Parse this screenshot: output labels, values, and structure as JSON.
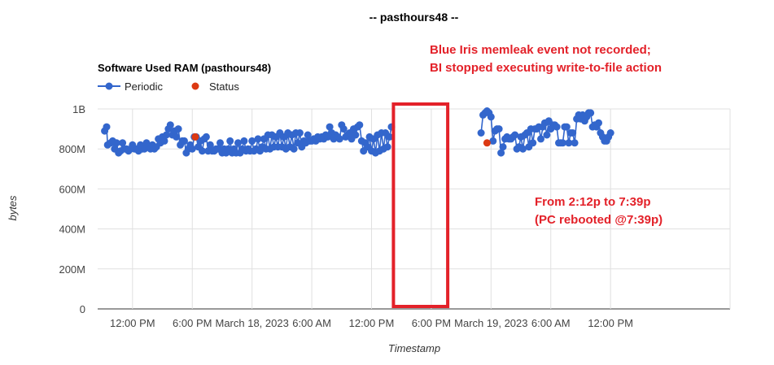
{
  "page_title": "-- pasthours48 --",
  "annotation_top": {
    "line1": "Blue Iris memleak event not recorded;",
    "line2": "BI stopped executing write-to-file action"
  },
  "annotation_bottom": {
    "line1": "From 2:12p to 7:39p",
    "line2": "(PC rebooted @7:39p)"
  },
  "colors": {
    "periodic": "#3366cc",
    "status": "#dc3912",
    "annotation": "#e32129",
    "grid": "#e0e0e0",
    "axis": "#333333"
  },
  "chart_data": {
    "type": "scatter",
    "title": "Software Used RAM (pasthours48)",
    "xlabel": "Timestamp",
    "ylabel": "bytes",
    "x_unit": "hours since March 17, 2023 12:00 AM",
    "xlim": [
      8.5,
      72
    ],
    "ylim": [
      0,
      1000000000
    ],
    "yticks": [
      {
        "value": 0,
        "label": "0"
      },
      {
        "value": 200000000,
        "label": "200M"
      },
      {
        "value": 400000000,
        "label": "400M"
      },
      {
        "value": 600000000,
        "label": "600M"
      },
      {
        "value": 800000000,
        "label": "800M"
      },
      {
        "value": 1000000000,
        "label": "1B"
      }
    ],
    "xticks": [
      {
        "value": 12,
        "label": "12:00 PM"
      },
      {
        "value": 18,
        "label": "6:00 PM"
      },
      {
        "value": 24,
        "label": "March 18, 2023"
      },
      {
        "value": 30,
        "label": "6:00 AM"
      },
      {
        "value": 36,
        "label": "12:00 PM"
      },
      {
        "value": 42,
        "label": "6:00 PM"
      },
      {
        "value": 48,
        "label": "March 19, 2023"
      },
      {
        "value": 54,
        "label": "6:00 AM"
      },
      {
        "value": 60,
        "label": "12:00 PM"
      }
    ],
    "legend": {
      "position": "top-left",
      "entries": [
        "Periodic",
        "Status"
      ]
    },
    "highlight_box": {
      "x_start": 38.2,
      "x_end": 43.65
    },
    "series": [
      {
        "name": "Periodic",
        "style": "line-with-points",
        "points": [
          [
            9.2,
            890
          ],
          [
            9.4,
            910
          ],
          [
            9.5,
            820
          ],
          [
            9.8,
            830
          ],
          [
            10.0,
            840
          ],
          [
            10.2,
            800
          ],
          [
            10.4,
            830
          ],
          [
            10.6,
            780
          ],
          [
            10.8,
            790
          ],
          [
            11.0,
            830
          ],
          [
            11.2,
            800
          ],
          [
            11.4,
            800
          ],
          [
            11.6,
            790
          ],
          [
            11.8,
            800
          ],
          [
            12.0,
            820
          ],
          [
            12.2,
            800
          ],
          [
            12.4,
            800
          ],
          [
            12.6,
            790
          ],
          [
            12.8,
            820
          ],
          [
            13.0,
            800
          ],
          [
            13.2,
            800
          ],
          [
            13.4,
            830
          ],
          [
            13.6,
            810
          ],
          [
            13.8,
            800
          ],
          [
            14.0,
            820
          ],
          [
            14.2,
            800
          ],
          [
            14.4,
            810
          ],
          [
            14.6,
            850
          ],
          [
            14.8,
            830
          ],
          [
            15.0,
            860
          ],
          [
            15.2,
            840
          ],
          [
            15.4,
            870
          ],
          [
            15.6,
            900
          ],
          [
            15.8,
            920
          ],
          [
            16.0,
            870
          ],
          [
            16.2,
            890
          ],
          [
            16.4,
            860
          ],
          [
            16.6,
            900
          ],
          [
            16.8,
            820
          ],
          [
            17.0,
            840
          ],
          [
            17.2,
            840
          ],
          [
            17.4,
            780
          ],
          [
            17.6,
            800
          ],
          [
            17.8,
            820
          ],
          [
            18.0,
            800
          ],
          [
            18.2,
            860
          ],
          [
            18.4,
            860
          ],
          [
            18.6,
            810
          ],
          [
            18.8,
            840
          ],
          [
            19.0,
            790
          ],
          [
            19.2,
            850
          ],
          [
            19.4,
            860
          ],
          [
            19.6,
            790
          ],
          [
            19.8,
            820
          ],
          [
            20.0,
            790
          ],
          [
            20.2,
            790
          ],
          [
            20.4,
            800
          ],
          [
            20.6,
            800
          ],
          [
            20.8,
            830
          ],
          [
            21.0,
            780
          ],
          [
            21.2,
            800
          ],
          [
            21.4,
            780
          ],
          [
            21.6,
            800
          ],
          [
            21.8,
            840
          ],
          [
            22.0,
            780
          ],
          [
            22.2,
            800
          ],
          [
            22.4,
            780
          ],
          [
            22.6,
            830
          ],
          [
            22.8,
            780
          ],
          [
            23.0,
            800
          ],
          [
            23.2,
            840
          ],
          [
            23.4,
            790
          ],
          [
            23.6,
            800
          ],
          [
            23.8,
            790
          ],
          [
            24.0,
            840
          ],
          [
            24.2,
            790
          ],
          [
            24.4,
            800
          ],
          [
            24.6,
            850
          ],
          [
            24.8,
            790
          ],
          [
            25.0,
            810
          ],
          [
            25.2,
            850
          ],
          [
            25.4,
            800
          ],
          [
            25.6,
            870
          ],
          [
            25.8,
            800
          ],
          [
            26.0,
            870
          ],
          [
            26.2,
            810
          ],
          [
            26.4,
            860
          ],
          [
            26.6,
            810
          ],
          [
            26.8,
            880
          ],
          [
            27.0,
            810
          ],
          [
            27.2,
            860
          ],
          [
            27.4,
            800
          ],
          [
            27.6,
            880
          ],
          [
            27.8,
            810
          ],
          [
            28.0,
            870
          ],
          [
            28.2,
            800
          ],
          [
            28.4,
            880
          ],
          [
            28.6,
            830
          ],
          [
            28.8,
            880
          ],
          [
            29.0,
            810
          ],
          [
            29.2,
            840
          ],
          [
            29.4,
            830
          ],
          [
            29.6,
            870
          ],
          [
            29.8,
            840
          ],
          [
            30.0,
            840
          ],
          [
            30.2,
            850
          ],
          [
            30.4,
            840
          ],
          [
            30.6,
            860
          ],
          [
            30.8,
            850
          ],
          [
            31.0,
            860
          ],
          [
            31.2,
            850
          ],
          [
            31.4,
            870
          ],
          [
            31.6,
            860
          ],
          [
            31.8,
            910
          ],
          [
            32.0,
            880
          ],
          [
            32.2,
            850
          ],
          [
            32.4,
            870
          ],
          [
            32.6,
            860
          ],
          [
            32.8,
            850
          ],
          [
            33.0,
            920
          ],
          [
            33.2,
            900
          ],
          [
            33.4,
            860
          ],
          [
            33.6,
            870
          ],
          [
            33.8,
            880
          ],
          [
            34.0,
            850
          ],
          [
            34.2,
            900
          ],
          [
            34.4,
            870
          ],
          [
            34.6,
            910
          ],
          [
            34.8,
            920
          ],
          [
            35.0,
            840
          ],
          [
            35.2,
            790
          ],
          [
            35.4,
            830
          ],
          [
            35.6,
            810
          ],
          [
            35.8,
            860
          ],
          [
            36.0,
            790
          ],
          [
            36.2,
            850
          ],
          [
            36.4,
            780
          ],
          [
            36.6,
            870
          ],
          [
            36.8,
            790
          ],
          [
            37.0,
            880
          ],
          [
            37.2,
            800
          ],
          [
            37.4,
            880
          ],
          [
            37.6,
            810
          ],
          [
            37.8,
            860
          ],
          [
            38.0,
            910
          ],
          [
            47.0,
            880
          ],
          [
            47.2,
            970
          ],
          [
            47.4,
            980
          ],
          [
            47.6,
            990
          ],
          [
            47.8,
            980
          ],
          [
            48.0,
            960
          ],
          [
            48.2,
            840
          ],
          [
            48.4,
            890
          ],
          [
            48.6,
            900
          ],
          [
            48.8,
            900
          ],
          [
            49.0,
            780
          ],
          [
            49.2,
            810
          ],
          [
            49.4,
            850
          ],
          [
            49.6,
            860
          ],
          [
            49.8,
            850
          ],
          [
            50.0,
            850
          ],
          [
            50.2,
            860
          ],
          [
            50.4,
            870
          ],
          [
            50.6,
            800
          ],
          [
            50.8,
            810
          ],
          [
            51.0,
            860
          ],
          [
            51.2,
            800
          ],
          [
            51.4,
            870
          ],
          [
            51.6,
            880
          ],
          [
            51.8,
            810
          ],
          [
            52.0,
            900
          ],
          [
            52.2,
            830
          ],
          [
            52.4,
            900
          ],
          [
            52.6,
            900
          ],
          [
            52.8,
            910
          ],
          [
            53.0,
            850
          ],
          [
            53.2,
            910
          ],
          [
            53.4,
            930
          ],
          [
            53.6,
            870
          ],
          [
            53.8,
            940
          ],
          [
            54.0,
            900
          ],
          [
            54.2,
            920
          ],
          [
            54.4,
            920
          ],
          [
            54.6,
            910
          ],
          [
            54.8,
            830
          ],
          [
            55.0,
            830
          ],
          [
            55.2,
            830
          ],
          [
            55.4,
            910
          ],
          [
            55.6,
            910
          ],
          [
            55.8,
            830
          ],
          [
            56.0,
            880
          ],
          [
            56.2,
            880
          ],
          [
            56.4,
            830
          ],
          [
            56.6,
            950
          ],
          [
            56.8,
            970
          ],
          [
            57.0,
            950
          ],
          [
            57.2,
            970
          ],
          [
            57.4,
            940
          ],
          [
            57.6,
            960
          ],
          [
            57.8,
            980
          ],
          [
            58.0,
            980
          ],
          [
            58.2,
            910
          ],
          [
            58.4,
            920
          ],
          [
            58.6,
            910
          ],
          [
            58.8,
            930
          ],
          [
            59.0,
            880
          ],
          [
            59.2,
            860
          ],
          [
            59.4,
            840
          ],
          [
            59.6,
            840
          ],
          [
            59.8,
            860
          ],
          [
            60.0,
            880
          ]
        ]
      },
      {
        "name": "Status",
        "style": "points",
        "points": [
          [
            18.3,
            860
          ],
          [
            47.6,
            830
          ]
        ]
      }
    ]
  }
}
